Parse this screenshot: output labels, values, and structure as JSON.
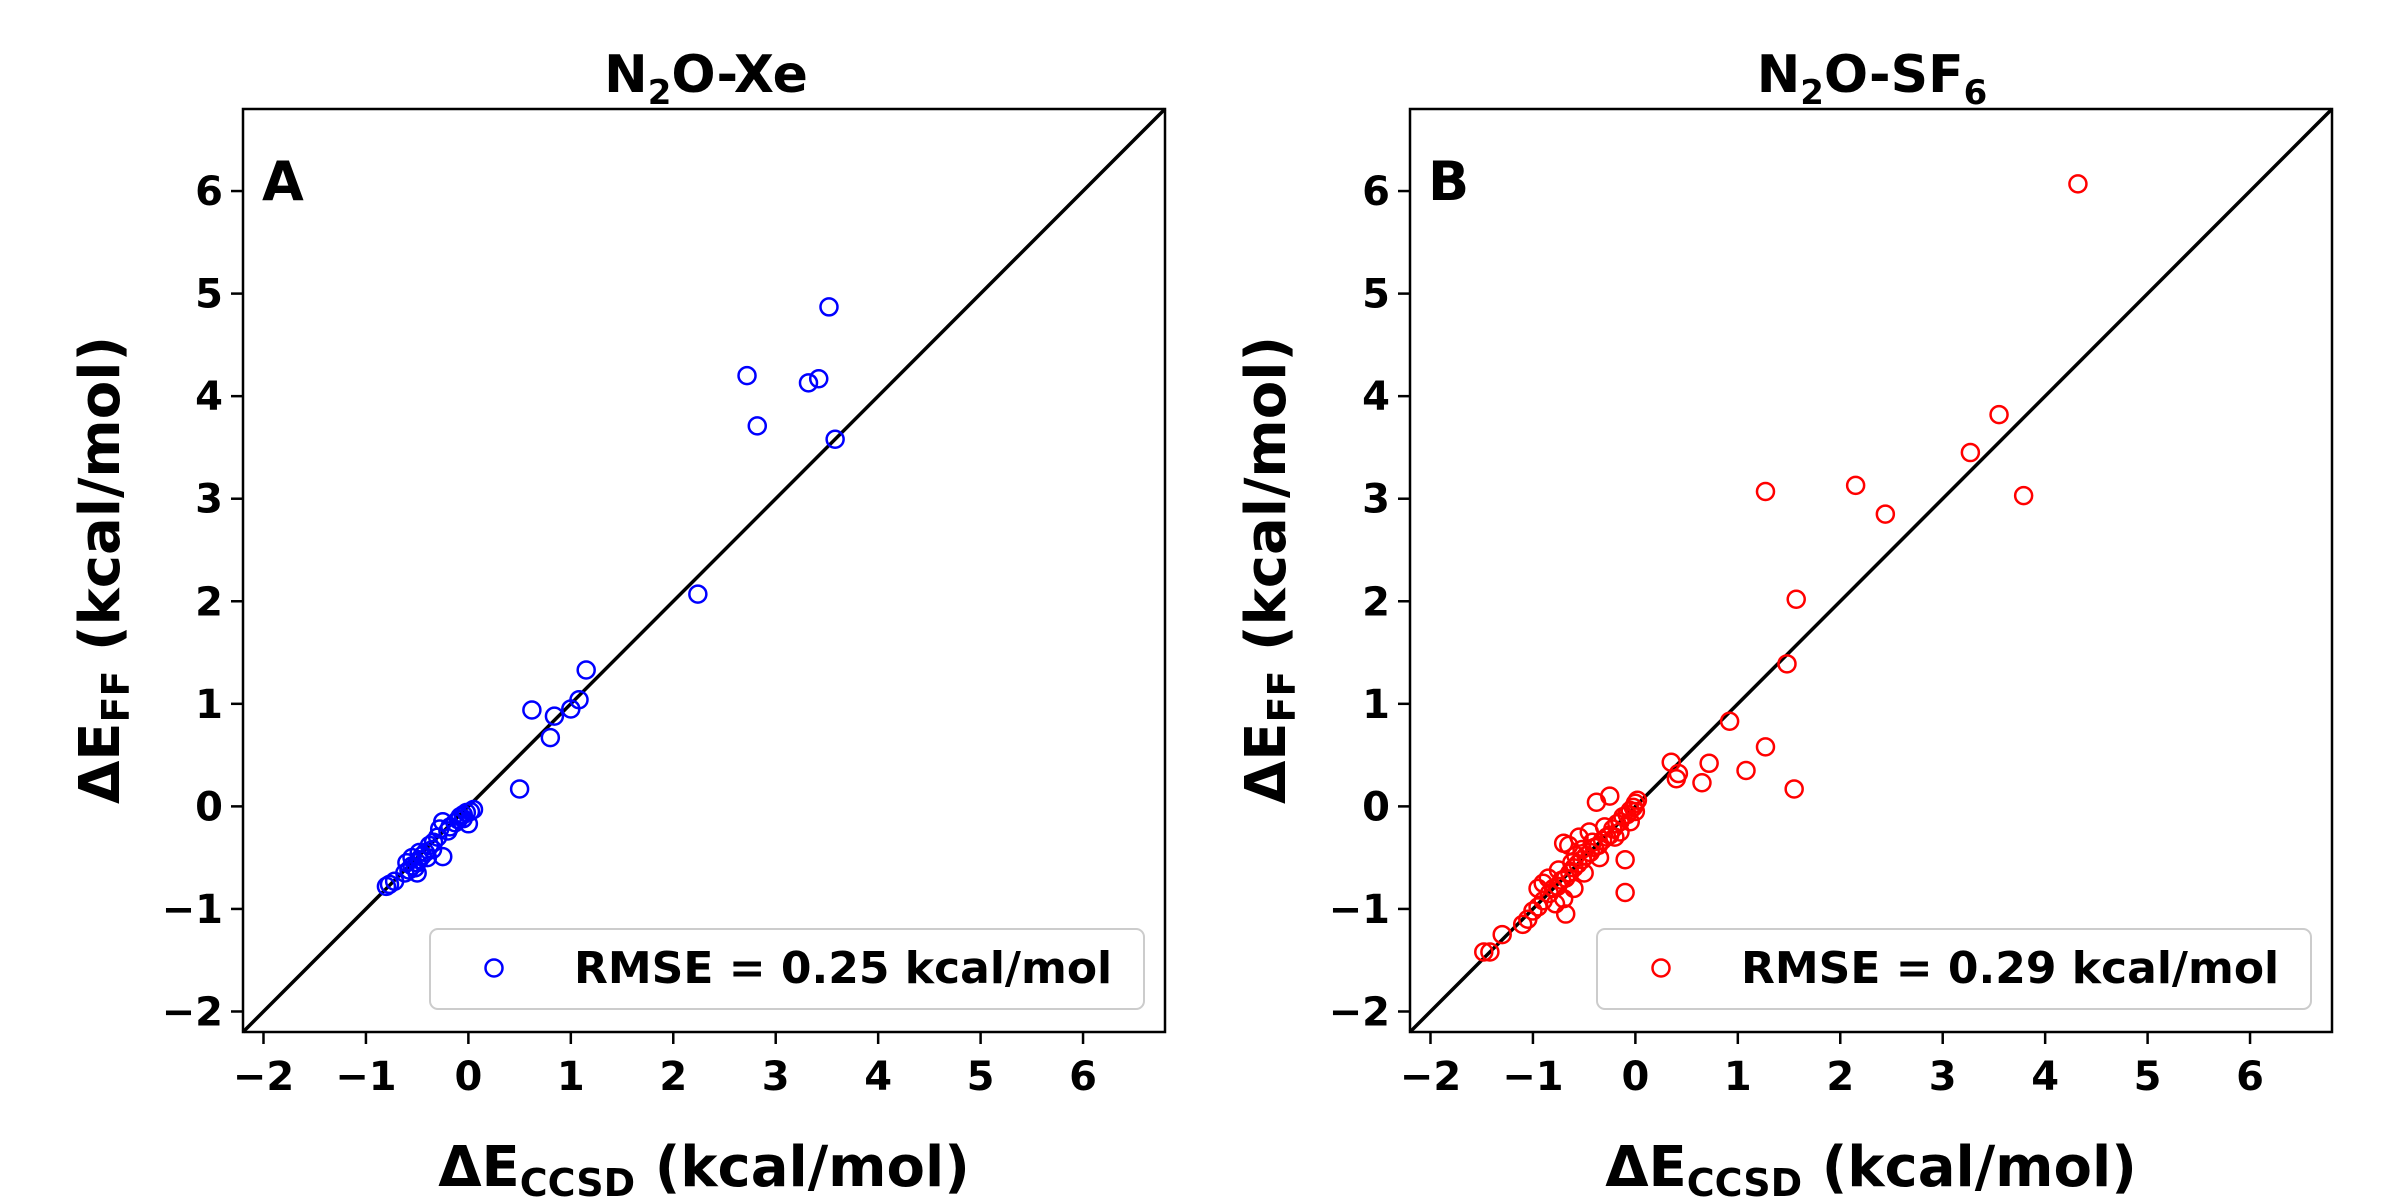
{
  "figure": {
    "description": "Force-field vs CCSD interaction energies"
  },
  "chart_data": [
    {
      "type": "scatter",
      "panel_label": "A",
      "title_parts": [
        "N",
        "2",
        "O-Xe",
        ""
      ],
      "xlabel_parts": [
        "ΔE",
        "CCSD",
        " (kcal/mol)"
      ],
      "ylabel_parts": [
        "ΔE",
        "FF",
        " (kcal/mol)"
      ],
      "xlim": [
        -2.2,
        6.8
      ],
      "ylim": [
        -2.2,
        6.8
      ],
      "ticks": [
        -2,
        -1,
        0,
        1,
        2,
        3,
        4,
        5,
        6
      ],
      "tick_labels": [
        "−2",
        "−1",
        "0",
        "1",
        "2",
        "3",
        "4",
        "5",
        "6"
      ],
      "reference_line": "y = x",
      "legend": {
        "label": "RMSE = 0.25 kcal/mol",
        "loc": "lower right"
      },
      "marker_color": "#0000ff",
      "points": [
        [
          3.52,
          4.87
        ],
        [
          2.72,
          4.2
        ],
        [
          2.82,
          3.71
        ],
        [
          3.32,
          4.13
        ],
        [
          3.42,
          4.17
        ],
        [
          3.58,
          3.58
        ],
        [
          2.24,
          2.07
        ],
        [
          1.15,
          1.33
        ],
        [
          0.62,
          0.94
        ],
        [
          0.84,
          0.88
        ],
        [
          1.0,
          0.95
        ],
        [
          1.08,
          1.04
        ],
        [
          0.8,
          0.67
        ],
        [
          0.5,
          0.17
        ],
        [
          0.05,
          -0.03
        ],
        [
          0.02,
          -0.05
        ],
        [
          -0.02,
          -0.06
        ],
        [
          -0.05,
          -0.08
        ],
        [
          -0.08,
          -0.1
        ],
        [
          -0.1,
          -0.13
        ],
        [
          -0.13,
          -0.16
        ],
        [
          -0.18,
          -0.2
        ],
        [
          -0.2,
          -0.24
        ],
        [
          -0.25,
          -0.15
        ],
        [
          -0.28,
          -0.22
        ],
        [
          -0.3,
          -0.3
        ],
        [
          -0.34,
          -0.35
        ],
        [
          -0.38,
          -0.38
        ],
        [
          -0.42,
          -0.45
        ],
        [
          -0.45,
          -0.48
        ],
        [
          -0.48,
          -0.52
        ],
        [
          -0.5,
          -0.55
        ],
        [
          -0.52,
          -0.6
        ],
        [
          -0.55,
          -0.58
        ],
        [
          -0.58,
          -0.62
        ],
        [
          -0.6,
          -0.55
        ],
        [
          -0.62,
          -0.65
        ],
        [
          -0.5,
          -0.65
        ],
        [
          -0.4,
          -0.5
        ],
        [
          -0.25,
          -0.49
        ],
        [
          -0.48,
          -0.45
        ],
        [
          0.0,
          -0.17
        ],
        [
          -0.05,
          -0.12
        ],
        [
          -0.35,
          -0.42
        ],
        [
          -0.55,
          -0.5
        ],
        [
          -0.8,
          -0.78
        ],
        [
          -0.77,
          -0.76
        ],
        [
          -0.72,
          -0.73
        ]
      ]
    },
    {
      "type": "scatter",
      "panel_label": "B",
      "title_parts": [
        "N",
        "2",
        "O-SF",
        "6"
      ],
      "xlabel_parts": [
        "ΔE",
        "CCSD",
        " (kcal/mol)"
      ],
      "ylabel_parts": [
        "ΔE",
        "FF",
        " (kcal/mol)"
      ],
      "xlim": [
        -2.2,
        6.8
      ],
      "ylim": [
        -2.2,
        6.8
      ],
      "ticks": [
        -2,
        -1,
        0,
        1,
        2,
        3,
        4,
        5,
        6
      ],
      "tick_labels": [
        "−2",
        "−1",
        "0",
        "1",
        "2",
        "3",
        "4",
        "5",
        "6"
      ],
      "reference_line": "y = x",
      "legend": {
        "label": "RMSE = 0.29 kcal/mol",
        "loc": "lower right"
      },
      "marker_color": "#ff0000",
      "points": [
        [
          4.32,
          6.07
        ],
        [
          3.55,
          3.82
        ],
        [
          3.27,
          3.45
        ],
        [
          3.79,
          3.03
        ],
        [
          2.15,
          3.13
        ],
        [
          2.44,
          2.85
        ],
        [
          1.27,
          3.07
        ],
        [
          1.57,
          2.02
        ],
        [
          1.48,
          1.39
        ],
        [
          0.92,
          0.83
        ],
        [
          1.27,
          0.58
        ],
        [
          1.55,
          0.17
        ],
        [
          1.08,
          0.35
        ],
        [
          0.72,
          0.42
        ],
        [
          0.65,
          0.23
        ],
        [
          0.4,
          0.27
        ],
        [
          0.42,
          0.32
        ],
        [
          0.35,
          0.43
        ],
        [
          0.02,
          0.06
        ],
        [
          0.0,
          0.03
        ],
        [
          -0.02,
          -0.01
        ],
        [
          -0.05,
          -0.04
        ],
        [
          -0.08,
          -0.08
        ],
        [
          -0.12,
          -0.1
        ],
        [
          -0.15,
          -0.15
        ],
        [
          -0.18,
          -0.17
        ],
        [
          -0.22,
          -0.22
        ],
        [
          -0.25,
          -0.28
        ],
        [
          -0.28,
          -0.3
        ],
        [
          -0.32,
          -0.33
        ],
        [
          -0.36,
          -0.38
        ],
        [
          -0.4,
          -0.4
        ],
        [
          -0.44,
          -0.45
        ],
        [
          -0.48,
          -0.48
        ],
        [
          -0.52,
          -0.52
        ],
        [
          -0.56,
          -0.56
        ],
        [
          -0.6,
          -0.6
        ],
        [
          -0.64,
          -0.65
        ],
        [
          -0.68,
          -0.7
        ],
        [
          -0.72,
          -0.72
        ],
        [
          -0.76,
          -0.78
        ],
        [
          -0.8,
          -0.8
        ],
        [
          -0.84,
          -0.85
        ],
        [
          -0.9,
          -0.92
        ],
        [
          -0.95,
          -0.98
        ],
        [
          -1.0,
          -1.02
        ],
        [
          -1.05,
          -1.1
        ],
        [
          -1.1,
          -1.15
        ],
        [
          -1.3,
          -1.25
        ],
        [
          -1.42,
          -1.42
        ],
        [
          -1.48,
          -1.42
        ],
        [
          -0.38,
          0.04
        ],
        [
          -0.25,
          0.1
        ],
        [
          -0.1,
          -0.52
        ],
        [
          -0.1,
          -0.84
        ],
        [
          -0.55,
          -0.3
        ],
        [
          -0.65,
          -0.38
        ],
        [
          -0.7,
          -0.36
        ],
        [
          -0.42,
          -0.35
        ],
        [
          -0.35,
          -0.5
        ],
        [
          -0.2,
          -0.3
        ],
        [
          -0.5,
          -0.65
        ],
        [
          -0.6,
          -0.8
        ],
        [
          -0.7,
          -0.9
        ],
        [
          -0.68,
          -1.05
        ],
        [
          -0.75,
          -0.62
        ],
        [
          -0.85,
          -0.7
        ],
        [
          -0.95,
          -0.8
        ],
        [
          -0.78,
          -0.95
        ],
        [
          -0.62,
          -0.55
        ],
        [
          -0.3,
          -0.2
        ],
        [
          -0.15,
          -0.25
        ],
        [
          -0.05,
          -0.15
        ],
        [
          0.0,
          -0.05
        ],
        [
          -0.45,
          -0.25
        ],
        [
          -0.52,
          -0.42
        ],
        [
          -0.58,
          -0.48
        ],
        [
          -0.9,
          -0.75
        ]
      ]
    }
  ]
}
